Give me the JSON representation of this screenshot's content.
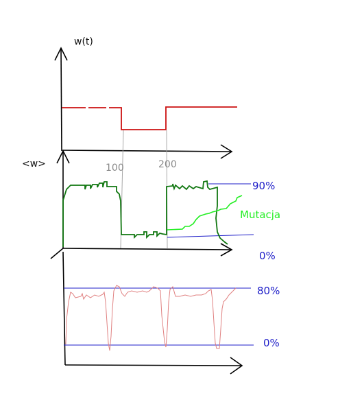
{
  "labels": {
    "wt_axis": "w(t)",
    "w_avg_axis": "<w>",
    "tick_100": "100",
    "tick_200": "200",
    "pct_90": "90%",
    "pct_0_middle": "0%",
    "pct_80": "80%",
    "pct_0_bottom": "0%",
    "mutation": "Mutacja"
  },
  "colors": {
    "axis": "#000000",
    "fitness_step": "#cc1111",
    "mean_fitness": "#117711",
    "mutation": "#22ee22",
    "diversity": "#e08080",
    "threshold": "#1d1dc8",
    "guide": "#a8a8a8"
  }
}
